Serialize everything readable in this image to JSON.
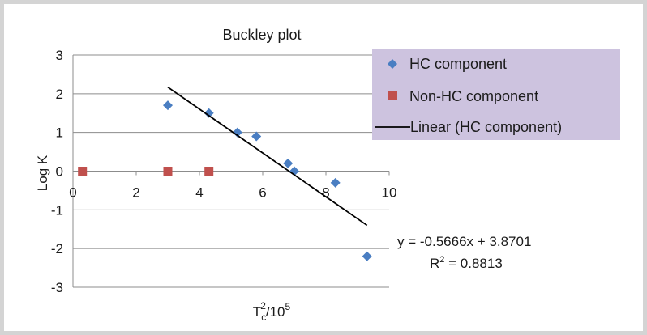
{
  "chart_data": {
    "type": "scatter",
    "title": "Buckley plot",
    "xlabel": {
      "base": "T",
      "sub": "c",
      "sup": "2",
      "suffix": "/10",
      "sup2": "5"
    },
    "ylabel": "Log K",
    "xlim": [
      0,
      10
    ],
    "ylim": [
      -3,
      3
    ],
    "x_ticks": [
      0,
      2,
      4,
      6,
      8,
      10
    ],
    "y_ticks": [
      -3,
      -2,
      -1,
      0,
      1,
      2,
      3
    ],
    "grid": "horizontal",
    "legend_position": "top-right",
    "series": [
      {
        "name": "HC component",
        "marker": "diamond",
        "color": "#4a7ec2",
        "points": [
          {
            "x": 3.0,
            "y": 1.7
          },
          {
            "x": 4.3,
            "y": 1.5
          },
          {
            "x": 5.2,
            "y": 1.0
          },
          {
            "x": 5.8,
            "y": 0.9
          },
          {
            "x": 6.8,
            "y": 0.2
          },
          {
            "x": 7.0,
            "y": 0.0
          },
          {
            "x": 8.3,
            "y": -0.3
          },
          {
            "x": 9.3,
            "y": -2.2
          }
        ]
      },
      {
        "name": "Non-HC component",
        "marker": "square",
        "color": "#c0504d",
        "points": [
          {
            "x": 0.3,
            "y": 0.0
          },
          {
            "x": 3.0,
            "y": 0.0
          },
          {
            "x": 4.3,
            "y": 0.0
          }
        ]
      }
    ],
    "trendline": {
      "name": "Linear (HC component)",
      "slope": -0.5666,
      "intercept": 3.8701,
      "x_range": [
        3.0,
        9.3
      ],
      "color": "#000000"
    },
    "equation_text": "y = -0.5666x + 3.8701",
    "r2": {
      "prefix": "R",
      "sup": "2",
      "value": " = 0.8813"
    },
    "legend_bg": "#cdc3df"
  }
}
